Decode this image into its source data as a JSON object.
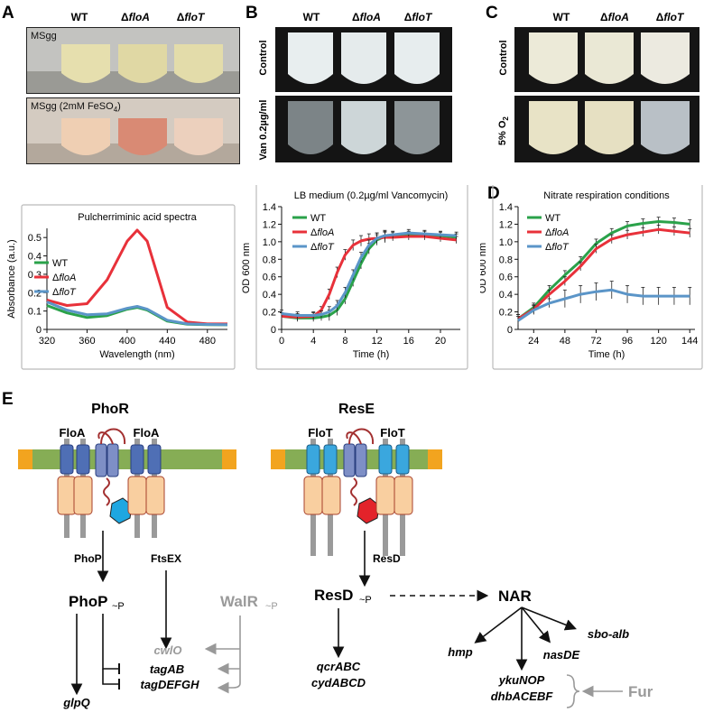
{
  "panels": {
    "a": "A",
    "b": "B",
    "c": "C",
    "d": "D",
    "e": "E"
  },
  "strains": {
    "wt": "WT",
    "floA": "ΔfloA",
    "floT": "ΔfloT",
    "floA_sym": "Δ",
    "floA_name": "floA",
    "floT_sym": "Δ",
    "floT_name": "floT"
  },
  "panel_a": {
    "photo1_label": "MSgg",
    "photo2_label": "MSgg (2mM FeSO4)",
    "photo2_label_main": "MSgg (2mM FeSO",
    "photo2_label_sub": "4",
    "photo2_label_end": ")"
  },
  "panel_b": {
    "row1": "Control",
    "row2": "Van 0.2µg/ml"
  },
  "panel_c": {
    "row1": "Control",
    "row2": "5% O2",
    "row2_main": "5% O",
    "row2_sub": "2"
  },
  "chart_data": [
    {
      "type": "line",
      "title": "Pulcherriminic acid spectra",
      "xlabel": "Wavelength (nm)",
      "ylabel": "Absorbance (a.u.)",
      "xlim": [
        320,
        500
      ],
      "ylim": [
        0,
        0.55
      ],
      "xticks": [
        320,
        360,
        400,
        440,
        480
      ],
      "yticks": [
        0,
        0.1,
        0.2,
        0.3,
        0.4,
        0.5
      ],
      "legend": "left",
      "series": [
        {
          "name": "WT",
          "color": "#2aa24a",
          "x": [
            320,
            340,
            360,
            380,
            400,
            410,
            420,
            440,
            460,
            480,
            500
          ],
          "y": [
            0.13,
            0.09,
            0.065,
            0.075,
            0.11,
            0.12,
            0.105,
            0.045,
            0.028,
            0.026,
            0.025
          ]
        },
        {
          "name": "ΔfloA",
          "color": "#e8313a",
          "x": [
            320,
            340,
            360,
            380,
            400,
            410,
            420,
            440,
            460,
            480,
            500
          ],
          "y": [
            0.16,
            0.13,
            0.14,
            0.27,
            0.48,
            0.54,
            0.48,
            0.12,
            0.04,
            0.03,
            0.03
          ]
        },
        {
          "name": "ΔfloT",
          "color": "#5b95c8",
          "x": [
            320,
            340,
            360,
            380,
            400,
            410,
            420,
            440,
            460,
            480,
            500
          ],
          "y": [
            0.15,
            0.105,
            0.08,
            0.085,
            0.115,
            0.125,
            0.11,
            0.05,
            0.03,
            0.027,
            0.026
          ]
        }
      ]
    },
    {
      "type": "line",
      "title": "LB medium (0.2µg/ml Vancomycin)",
      "xlabel": "Time (h)",
      "ylabel": "OD 600 nm",
      "xlim": [
        0,
        22.5
      ],
      "ylim": [
        0,
        1.4
      ],
      "xticks": [
        0,
        4,
        8,
        12,
        16,
        20
      ],
      "yticks": [
        0,
        0.2,
        0.4,
        0.6,
        0.8,
        1.0,
        1.2,
        1.4
      ],
      "legend": "top-left",
      "series": [
        {
          "name": "WT",
          "color": "#2aa24a",
          "x": [
            0,
            2,
            4,
            5,
            6,
            7,
            8,
            9,
            10,
            11,
            12,
            13,
            14,
            16,
            18,
            20,
            22
          ],
          "y": [
            0.15,
            0.13,
            0.13,
            0.14,
            0.16,
            0.22,
            0.35,
            0.55,
            0.75,
            0.92,
            1.02,
            1.06,
            1.07,
            1.08,
            1.08,
            1.07,
            1.05
          ]
        },
        {
          "name": "ΔfloA",
          "color": "#e8313a",
          "x": [
            0,
            2,
            4,
            5,
            6,
            7,
            8,
            9,
            10,
            11,
            12,
            13,
            14,
            16,
            18,
            20,
            22
          ],
          "y": [
            0.15,
            0.14,
            0.15,
            0.22,
            0.4,
            0.65,
            0.85,
            0.96,
            1.01,
            1.03,
            1.04,
            1.05,
            1.05,
            1.06,
            1.06,
            1.04,
            1.02
          ]
        },
        {
          "name": "ΔfloT",
          "color": "#5b95c8",
          "x": [
            0,
            2,
            4,
            5,
            6,
            7,
            8,
            9,
            10,
            11,
            12,
            13,
            14,
            16,
            18,
            20,
            22
          ],
          "y": [
            0.18,
            0.16,
            0.16,
            0.17,
            0.2,
            0.27,
            0.42,
            0.62,
            0.82,
            0.96,
            1.04,
            1.07,
            1.08,
            1.1,
            1.09,
            1.08,
            1.07
          ]
        }
      ]
    },
    {
      "type": "line",
      "title": "Nitrate respiration conditions",
      "xlabel": "Time (h)",
      "ylabel": "OD 600 nm",
      "xlim": [
        12,
        148
      ],
      "ylim": [
        0,
        1.4
      ],
      "xticks": [
        24,
        48,
        72,
        96,
        120,
        144
      ],
      "yticks": [
        0,
        0.2,
        0.4,
        0.6,
        0.8,
        1.0,
        1.2,
        1.4
      ],
      "legend": "top-left",
      "series": [
        {
          "name": "WT",
          "color": "#2aa24a",
          "x": [
            12,
            24,
            36,
            48,
            60,
            72,
            84,
            96,
            108,
            120,
            132,
            144
          ],
          "y": [
            0.12,
            0.25,
            0.45,
            0.62,
            0.78,
            0.98,
            1.1,
            1.18,
            1.21,
            1.23,
            1.22,
            1.2
          ]
        },
        {
          "name": "ΔfloA",
          "color": "#e8313a",
          "x": [
            12,
            24,
            36,
            48,
            60,
            72,
            84,
            96,
            108,
            120,
            132,
            144
          ],
          "y": [
            0.12,
            0.23,
            0.4,
            0.55,
            0.72,
            0.92,
            1.03,
            1.08,
            1.11,
            1.14,
            1.12,
            1.1
          ]
        },
        {
          "name": "ΔfloT",
          "color": "#5b95c8",
          "x": [
            12,
            24,
            36,
            48,
            60,
            72,
            84,
            96,
            108,
            120,
            132,
            144
          ],
          "y": [
            0.1,
            0.22,
            0.3,
            0.35,
            0.4,
            0.43,
            0.45,
            0.4,
            0.38,
            0.38,
            0.38,
            0.38
          ]
        }
      ]
    }
  ],
  "diagram": {
    "phor": "PhoR",
    "flo_a1": "FloA",
    "flo_a2": "FloA",
    "rese": "ResE",
    "flo_t1": "FloT",
    "flo_t2": "FloT",
    "phop_arrow": "PhoP",
    "ftsex": "FtsEX",
    "phop": "PhoP",
    "phop_p": "~P",
    "walr": "WalR",
    "walr_p": "~P",
    "cwlo": "cwlO",
    "tagab": "tagAB",
    "tagdefgh": "tagDEFGH",
    "glpq": "glpQ",
    "resd_arrow": "ResD",
    "resd": "ResD",
    "resd_p": "~P",
    "nar": "NAR",
    "qcrabc": "qcrABC",
    "cydabcd": "cydABCD",
    "hmp": "hmp",
    "sboalb": "sbo-alb",
    "nasde": "nasDE",
    "ykunop": "ykuNOP",
    "dhbacebf": "dhbACEBF",
    "fur": "Fur"
  }
}
